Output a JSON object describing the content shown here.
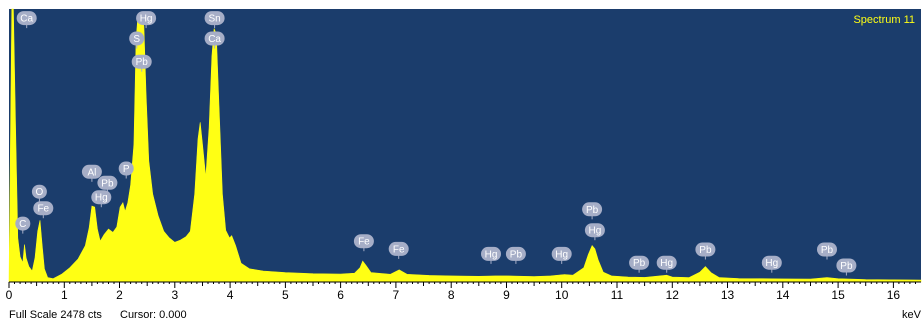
{
  "chart_data": {
    "type": "area",
    "title": "Spectrum 11",
    "xlabel": "keV",
    "ylabel": "",
    "xlim": [
      0,
      16.5
    ],
    "ylim": [
      0,
      2478
    ],
    "xticks": [
      0,
      1,
      2,
      3,
      4,
      5,
      6,
      7,
      8,
      9,
      10,
      11,
      12,
      13,
      14,
      15,
      16
    ],
    "footer": {
      "full_scale_label": "Full Scale 2478 cts",
      "cursor_label": "Cursor: 0.000"
    },
    "colors": {
      "background": "#1b3d6c",
      "fill": "#ffff14",
      "title": "#ffff14",
      "badge": "#a6aec7",
      "badge_text": "#ffffff"
    },
    "series": [
      {
        "values": [
          [
            0.0,
            0
          ],
          [
            0.05,
            2478
          ],
          [
            0.08,
            2478
          ],
          [
            0.12,
            1400
          ],
          [
            0.16,
            400
          ],
          [
            0.2,
            230
          ],
          [
            0.25,
            175
          ],
          [
            0.28,
            340
          ],
          [
            0.31,
            220
          ],
          [
            0.36,
            140
          ],
          [
            0.42,
            100
          ],
          [
            0.47,
            220
          ],
          [
            0.52,
            460
          ],
          [
            0.56,
            560
          ],
          [
            0.6,
            330
          ],
          [
            0.64,
            120
          ],
          [
            0.7,
            40
          ],
          [
            0.8,
            30
          ],
          [
            0.95,
            70
          ],
          [
            1.1,
            130
          ],
          [
            1.25,
            210
          ],
          [
            1.38,
            330
          ],
          [
            1.45,
            490
          ],
          [
            1.5,
            690
          ],
          [
            1.55,
            680
          ],
          [
            1.6,
            480
          ],
          [
            1.65,
            370
          ],
          [
            1.72,
            430
          ],
          [
            1.8,
            480
          ],
          [
            1.88,
            450
          ],
          [
            1.95,
            500
          ],
          [
            2.01,
            680
          ],
          [
            2.06,
            720
          ],
          [
            2.1,
            640
          ],
          [
            2.15,
            720
          ],
          [
            2.2,
            880
          ],
          [
            2.26,
            1250
          ],
          [
            2.3,
            2200
          ],
          [
            2.33,
            2400
          ],
          [
            2.36,
            2380
          ],
          [
            2.4,
            2430
          ],
          [
            2.44,
            2320
          ],
          [
            2.48,
            1700
          ],
          [
            2.53,
            1100
          ],
          [
            2.6,
            800
          ],
          [
            2.7,
            600
          ],
          [
            2.8,
            460
          ],
          [
            2.9,
            400
          ],
          [
            3.0,
            360
          ],
          [
            3.1,
            380
          ],
          [
            3.2,
            410
          ],
          [
            3.28,
            460
          ],
          [
            3.36,
            800
          ],
          [
            3.42,
            1300
          ],
          [
            3.46,
            1450
          ],
          [
            3.5,
            1250
          ],
          [
            3.56,
            950
          ],
          [
            3.62,
            1400
          ],
          [
            3.67,
            2050
          ],
          [
            3.71,
            2300
          ],
          [
            3.75,
            2250
          ],
          [
            3.8,
            1600
          ],
          [
            3.86,
            800
          ],
          [
            3.92,
            470
          ],
          [
            3.99,
            400
          ],
          [
            4.03,
            420
          ],
          [
            4.1,
            330
          ],
          [
            4.2,
            170
          ],
          [
            4.35,
            120
          ],
          [
            4.6,
            100
          ],
          [
            5.0,
            85
          ],
          [
            5.5,
            75
          ],
          [
            6.0,
            72
          ],
          [
            6.25,
            80
          ],
          [
            6.35,
            130
          ],
          [
            6.4,
            190
          ],
          [
            6.46,
            150
          ],
          [
            6.55,
            85
          ],
          [
            6.9,
            70
          ],
          [
            7.06,
            110
          ],
          [
            7.2,
            70
          ],
          [
            7.6,
            60
          ],
          [
            8.0,
            55
          ],
          [
            8.5,
            52
          ],
          [
            8.8,
            55
          ],
          [
            9.0,
            55
          ],
          [
            9.5,
            50
          ],
          [
            9.8,
            55
          ],
          [
            10.05,
            68
          ],
          [
            10.2,
            62
          ],
          [
            10.4,
            130
          ],
          [
            10.48,
            250
          ],
          [
            10.55,
            330
          ],
          [
            10.6,
            300
          ],
          [
            10.66,
            200
          ],
          [
            10.75,
            90
          ],
          [
            10.9,
            55
          ],
          [
            11.2,
            45
          ],
          [
            11.5,
            42
          ],
          [
            11.9,
            62
          ],
          [
            12.0,
            45
          ],
          [
            12.3,
            40
          ],
          [
            12.5,
            90
          ],
          [
            12.6,
            140
          ],
          [
            12.7,
            85
          ],
          [
            12.85,
            40
          ],
          [
            13.2,
            32
          ],
          [
            13.6,
            30
          ],
          [
            14.0,
            28
          ],
          [
            14.5,
            26
          ],
          [
            14.8,
            40
          ],
          [
            15.0,
            30
          ],
          [
            15.5,
            22
          ],
          [
            16.0,
            20
          ],
          [
            16.5,
            18
          ]
        ]
      }
    ],
    "annotations": [
      {
        "label": "Ca",
        "x": 0.32,
        "y": 2395
      },
      {
        "label": "C",
        "x": 0.25,
        "y": 530
      },
      {
        "label": "O",
        "x": 0.55,
        "y": 820
      },
      {
        "label": "Fe",
        "x": 0.62,
        "y": 670
      },
      {
        "label": "Al",
        "x": 1.5,
        "y": 1000
      },
      {
        "label": "Pb",
        "x": 1.78,
        "y": 900
      },
      {
        "label": "Hg",
        "x": 1.67,
        "y": 770
      },
      {
        "label": "P",
        "x": 2.12,
        "y": 1030
      },
      {
        "label": "Hg",
        "x": 2.48,
        "y": 2395
      },
      {
        "label": "S",
        "x": 2.31,
        "y": 2210
      },
      {
        "label": "Pb",
        "x": 2.4,
        "y": 2000
      },
      {
        "label": "Sn",
        "x": 3.72,
        "y": 2395
      },
      {
        "label": "Ca",
        "x": 3.72,
        "y": 2210
      },
      {
        "label": "Fe",
        "x": 6.42,
        "y": 370
      },
      {
        "label": "Fe",
        "x": 7.05,
        "y": 300
      },
      {
        "label": "Hg",
        "x": 8.72,
        "y": 255
      },
      {
        "label": "Pb",
        "x": 9.17,
        "y": 255
      },
      {
        "label": "Hg",
        "x": 10.0,
        "y": 255
      },
      {
        "label": "Pb",
        "x": 10.55,
        "y": 660
      },
      {
        "label": "Hg",
        "x": 10.6,
        "y": 470
      },
      {
        "label": "Pb",
        "x": 11.4,
        "y": 175
      },
      {
        "label": "Hg",
        "x": 11.9,
        "y": 175
      },
      {
        "label": "Pb",
        "x": 12.6,
        "y": 295
      },
      {
        "label": "Hg",
        "x": 13.8,
        "y": 175
      },
      {
        "label": "Pb",
        "x": 14.8,
        "y": 295
      },
      {
        "label": "Pb",
        "x": 15.15,
        "y": 150
      }
    ]
  }
}
